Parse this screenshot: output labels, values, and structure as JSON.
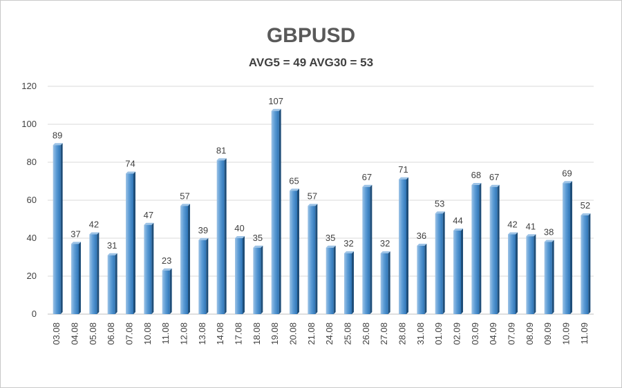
{
  "chart_data": {
    "type": "bar",
    "title": "GBPUSD",
    "subtitle": "AVG5 = 49 AVG30 = 53",
    "categories": [
      "03.08",
      "04.08",
      "05.08",
      "06.08",
      "07.08",
      "10.08",
      "11.08",
      "12.08",
      "13.08",
      "14.08",
      "17.08",
      "18.08",
      "19.08",
      "20.08",
      "21.08",
      "24.08",
      "25.08",
      "26.08",
      "27.08",
      "28.08",
      "31.08",
      "01.09",
      "02.09",
      "03.09",
      "04.09",
      "07.09",
      "08.09",
      "09.09",
      "10.09",
      "11.09"
    ],
    "values": [
      89,
      37,
      42,
      31,
      74,
      47,
      23,
      57,
      39,
      81,
      40,
      35,
      107,
      65,
      57,
      35,
      32,
      67,
      32,
      71,
      36,
      53,
      44,
      68,
      67,
      42,
      41,
      38,
      69,
      52
    ],
    "ylim": [
      0,
      120
    ],
    "yticks": [
      0,
      20,
      40,
      60,
      80,
      100,
      120
    ],
    "xlabel": "",
    "ylabel": "",
    "grid": true,
    "legend": "none",
    "colors": {
      "bar_light": "#9dc3e6",
      "bar_mid": "#5b9bd5",
      "bar_dark": "#2e75b6",
      "bar_side": "#1f4e79"
    }
  }
}
